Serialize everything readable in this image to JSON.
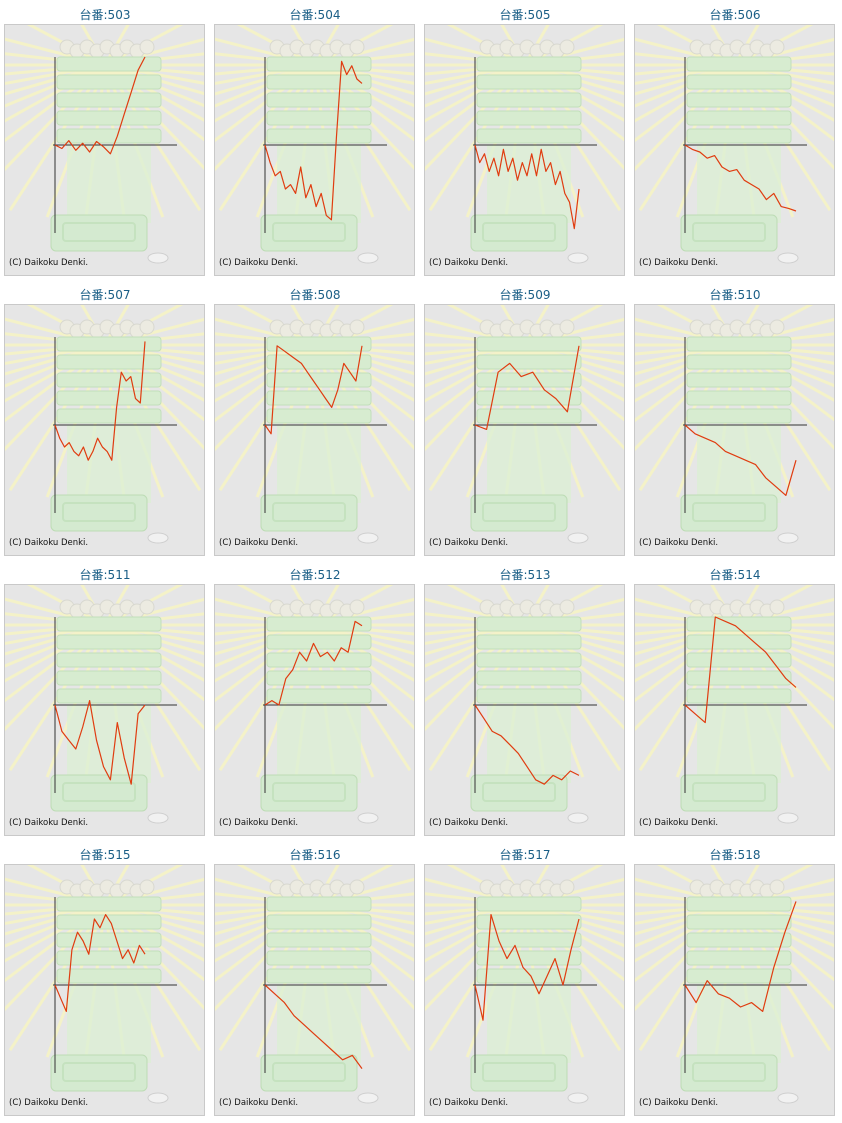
{
  "copyright": "(C) Daikoku Denki.",
  "colors": {
    "line": "#e03c10",
    "axis": "#333333",
    "title": "#1a5e86",
    "panel_bg": "#e6e6e6"
  },
  "chart_data": [
    {
      "type": "line",
      "title": "台番:503",
      "y": [
        0,
        -0.04,
        0.05,
        -0.06,
        0.02,
        -0.08,
        0.04,
        -0.02,
        -0.1,
        0.1,
        0.35,
        0.6,
        0.85,
        1.0
      ]
    },
    {
      "type": "line",
      "title": "台番:504",
      "y": [
        0,
        -0.2,
        -0.35,
        -0.3,
        -0.5,
        -0.45,
        -0.55,
        -0.25,
        -0.6,
        -0.45,
        -0.7,
        -0.55,
        -0.8,
        -0.85,
        0.1,
        0.95,
        0.8,
        0.9,
        0.75,
        0.7
      ]
    },
    {
      "type": "line",
      "title": "台番:505",
      "y": [
        0,
        -0.2,
        -0.1,
        -0.3,
        -0.15,
        -0.35,
        -0.05,
        -0.3,
        -0.15,
        -0.4,
        -0.2,
        -0.35,
        -0.1,
        -0.35,
        -0.05,
        -0.3,
        -0.2,
        -0.45,
        -0.3,
        -0.55,
        -0.65,
        -0.95,
        -0.5
      ]
    },
    {
      "type": "line",
      "title": "台番:506",
      "y": [
        0,
        -0.05,
        -0.08,
        -0.15,
        -0.12,
        -0.25,
        -0.3,
        -0.28,
        -0.4,
        -0.45,
        -0.5,
        -0.62,
        -0.55,
        -0.7,
        -0.72,
        -0.75
      ]
    },
    {
      "type": "line",
      "title": "台番:507",
      "y": [
        0,
        -0.15,
        -0.25,
        -0.2,
        -0.3,
        -0.35,
        -0.25,
        -0.4,
        -0.3,
        -0.15,
        -0.25,
        -0.3,
        -0.4,
        0.2,
        0.6,
        0.5,
        0.55,
        0.3,
        0.25,
        0.95
      ]
    },
    {
      "type": "line",
      "title": "台番:508",
      "y": [
        0,
        -0.1,
        0.9,
        0.85,
        0.8,
        0.75,
        0.7,
        0.6,
        0.5,
        0.4,
        0.3,
        0.2,
        0.4,
        0.7,
        0.6,
        0.5,
        0.9
      ]
    },
    {
      "type": "line",
      "title": "台番:509",
      "y": [
        0,
        -0.05,
        0.6,
        0.7,
        0.55,
        0.6,
        0.4,
        0.3,
        0.15,
        0.9
      ]
    },
    {
      "type": "line",
      "title": "台番:510",
      "y": [
        0,
        -0.1,
        -0.15,
        -0.2,
        -0.3,
        -0.35,
        -0.4,
        -0.45,
        -0.6,
        -0.7,
        -0.8,
        -0.4
      ]
    },
    {
      "type": "line",
      "title": "台番:511",
      "y": [
        0,
        -0.3,
        -0.4,
        -0.5,
        -0.25,
        0.05,
        -0.4,
        -0.7,
        -0.85,
        -0.2,
        -0.6,
        -0.9,
        -0.1,
        0
      ]
    },
    {
      "type": "line",
      "title": "台番:512",
      "y": [
        0,
        0.05,
        0,
        0.3,
        0.4,
        0.6,
        0.5,
        0.7,
        0.55,
        0.6,
        0.5,
        0.65,
        0.6,
        0.95,
        0.9
      ]
    },
    {
      "type": "line",
      "title": "台番:513",
      "y": [
        0,
        -0.15,
        -0.3,
        -0.35,
        -0.45,
        -0.55,
        -0.7,
        -0.85,
        -0.9,
        -0.8,
        -0.85,
        -0.75,
        -0.8
      ]
    },
    {
      "type": "line",
      "title": "台番:514",
      "y": [
        0,
        -0.1,
        -0.2,
        1.0,
        0.95,
        0.9,
        0.8,
        0.7,
        0.6,
        0.45,
        0.3,
        0.2
      ]
    },
    {
      "type": "line",
      "title": "台番:515",
      "y": [
        0,
        -0.15,
        -0.3,
        0.4,
        0.6,
        0.5,
        0.35,
        0.75,
        0.65,
        0.8,
        0.7,
        0.5,
        0.3,
        0.4,
        0.25,
        0.45,
        0.35
      ]
    },
    {
      "type": "line",
      "title": "台番:516",
      "y": [
        0,
        -0.1,
        -0.2,
        -0.35,
        -0.45,
        -0.55,
        -0.65,
        -0.75,
        -0.85,
        -0.8,
        -0.95
      ]
    },
    {
      "type": "line",
      "title": "台番:517",
      "y": [
        0,
        -0.4,
        0.8,
        0.5,
        0.3,
        0.45,
        0.2,
        0.1,
        -0.1,
        0.1,
        0.3,
        0,
        0.4,
        0.75
      ]
    },
    {
      "type": "line",
      "title": "台番:518",
      "y": [
        0,
        -0.2,
        0.05,
        -0.1,
        -0.15,
        -0.25,
        -0.2,
        -0.3,
        0.2,
        0.6,
        0.95
      ]
    }
  ]
}
